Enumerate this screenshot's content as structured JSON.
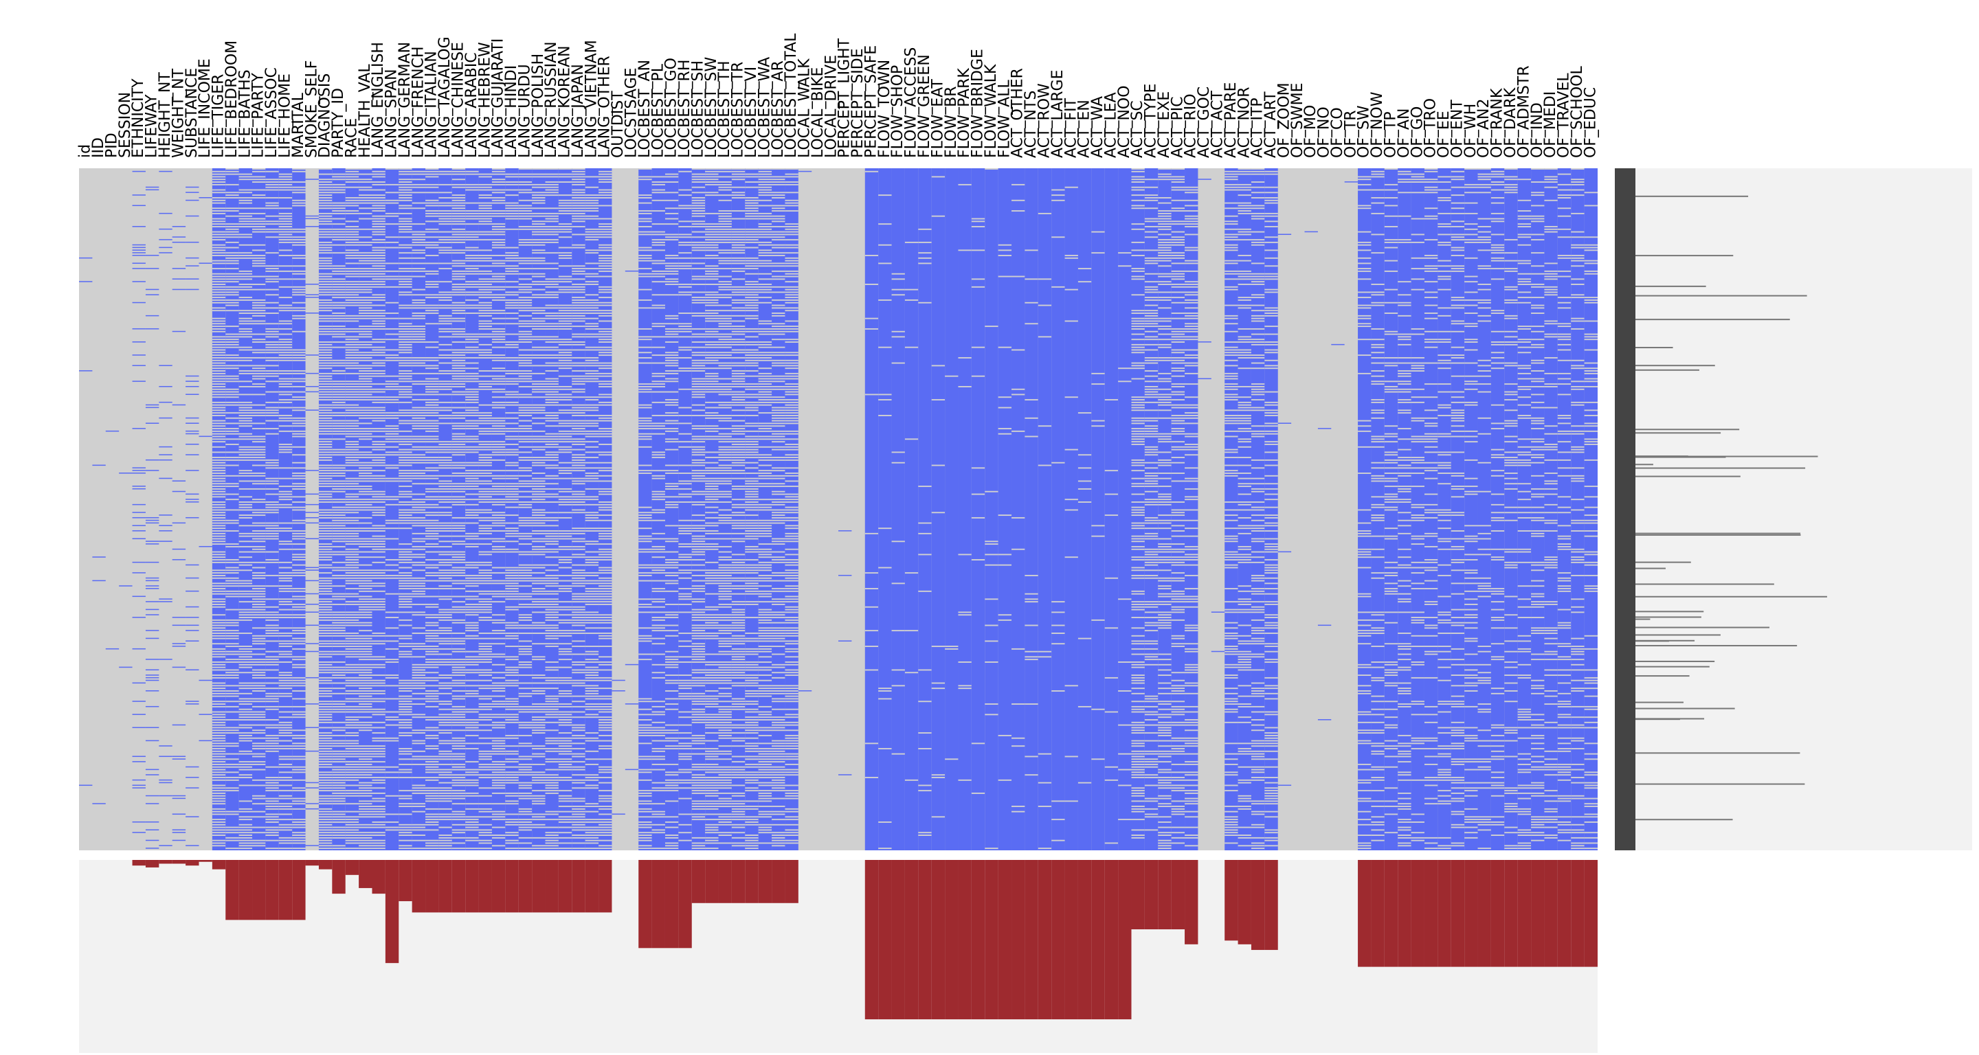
{
  "chart_data": {
    "type": "heatmap",
    "title": "",
    "description_values": "missingness matrix; blue = present, grey = missing; bottom bars = missing counts per column",
    "colors": {
      "present": "#5a6cf3",
      "missing": "#d0d0d0",
      "bar": "#9e2a2f",
      "panel_bg": "#f2f2f2",
      "side_bar": "#444444"
    },
    "columns": [
      {
        "name": "id",
        "missing": 0.0
      },
      {
        "name": "IID",
        "missing": 0.0
      },
      {
        "name": "PID",
        "missing": 0.0
      },
      {
        "name": "SESSION",
        "missing": 0.0
      },
      {
        "name": "ETHNICITY",
        "missing": 0.03
      },
      {
        "name": "LIFEWAY",
        "missing": 0.04
      },
      {
        "name": "HEIGHT_NT",
        "missing": 0.02
      },
      {
        "name": "WEIGHT_NT",
        "missing": 0.02
      },
      {
        "name": "SUBSTANCE",
        "missing": 0.03
      },
      {
        "name": "LIFE_INCOME",
        "missing": 0.01
      },
      {
        "name": "LIFE_TIGER",
        "missing": 0.05
      },
      {
        "name": "LIFE_BEDROOM",
        "missing": 0.32
      },
      {
        "name": "LIFE_BATHS",
        "missing": 0.32
      },
      {
        "name": "LIFE_PARTY",
        "missing": 0.32
      },
      {
        "name": "LIFE_ASSOC",
        "missing": 0.32
      },
      {
        "name": "LIFE_HOME",
        "missing": 0.32
      },
      {
        "name": "MARITAL",
        "missing": 0.32
      },
      {
        "name": "SMOKE_SELF",
        "missing": 0.03
      },
      {
        "name": "DIAGNOSIS",
        "missing": 0.05
      },
      {
        "name": "PARTY_ID",
        "missing": 0.18
      },
      {
        "name": "RACE",
        "missing": 0.08
      },
      {
        "name": "HEALTH_VAL",
        "missing": 0.15
      },
      {
        "name": "LANG_ENGLISH",
        "missing": 0.18
      },
      {
        "name": "LANG_SPAN",
        "missing": 0.55
      },
      {
        "name": "LANG_GERMAN",
        "missing": 0.22
      },
      {
        "name": "LANG_FRENCH",
        "missing": 0.28
      },
      {
        "name": "LANG_ITALIAN",
        "missing": 0.28
      },
      {
        "name": "LANG_TAGALOG",
        "missing": 0.28
      },
      {
        "name": "LANG_CHINESE",
        "missing": 0.28
      },
      {
        "name": "LANG_ARABIC",
        "missing": 0.28
      },
      {
        "name": "LANG_HEBREW",
        "missing": 0.28
      },
      {
        "name": "LANG_GUJARATI",
        "missing": 0.28
      },
      {
        "name": "LANG_HINDI",
        "missing": 0.28
      },
      {
        "name": "LANG_URDU",
        "missing": 0.28
      },
      {
        "name": "LANG_POLISH",
        "missing": 0.28
      },
      {
        "name": "LANG_RUSSIAN",
        "missing": 0.28
      },
      {
        "name": "LANG_KOREAN",
        "missing": 0.28
      },
      {
        "name": "LANG_JAPAN",
        "missing": 0.28
      },
      {
        "name": "LANG_VIETNAM",
        "missing": 0.28
      },
      {
        "name": "LANG_OTHER",
        "missing": 0.28
      },
      {
        "name": "OUTDIST",
        "missing": 0.0
      },
      {
        "name": "LOCSTSAGE",
        "missing": 0.0
      },
      {
        "name": "LOCBEST_AN",
        "missing": 0.47
      },
      {
        "name": "LOCBEST_PL",
        "missing": 0.47
      },
      {
        "name": "LOCBEST_GO",
        "missing": 0.47
      },
      {
        "name": "LOCBEST_RH",
        "missing": 0.47
      },
      {
        "name": "LOCBEST_SH",
        "missing": 0.23
      },
      {
        "name": "LOCBEST_SW",
        "missing": 0.23
      },
      {
        "name": "LOCBEST_TH",
        "missing": 0.23
      },
      {
        "name": "LOCBEST_TR",
        "missing": 0.23
      },
      {
        "name": "LOCBEST_VI",
        "missing": 0.23
      },
      {
        "name": "LOCBEST_WA",
        "missing": 0.23
      },
      {
        "name": "LOCBEST_AR",
        "missing": 0.23
      },
      {
        "name": "LOCBEST_TOTAL",
        "missing": 0.23
      },
      {
        "name": "LOCAL_WALK",
        "missing": 0.0
      },
      {
        "name": "LOCAL_BIKE",
        "missing": 0.0
      },
      {
        "name": "LOCAL_DRIVE",
        "missing": 0.0
      },
      {
        "name": "PERCEPT_LIGHT",
        "missing": 0.0
      },
      {
        "name": "PERCEPT_SIDE",
        "missing": 0.0
      },
      {
        "name": "PERCEPT_SAFE",
        "missing": 0.85
      },
      {
        "name": "FLOW_TOWN",
        "missing": 0.85
      },
      {
        "name": "FLOW_SHOP",
        "missing": 0.85
      },
      {
        "name": "FLOW_ACCESS",
        "missing": 0.85
      },
      {
        "name": "FLOW_GREEN",
        "missing": 0.85
      },
      {
        "name": "FLOW_EAT",
        "missing": 0.85
      },
      {
        "name": "FLOW_BR",
        "missing": 0.85
      },
      {
        "name": "FLOW_PARK",
        "missing": 0.85
      },
      {
        "name": "FLOW_BRIDGE",
        "missing": 0.85
      },
      {
        "name": "FLOW_WALK",
        "missing": 0.85
      },
      {
        "name": "FLOW_ALL",
        "missing": 0.85
      },
      {
        "name": "ACT_OTHER",
        "missing": 0.85
      },
      {
        "name": "ACT_NTS",
        "missing": 0.85
      },
      {
        "name": "ACT_ROW",
        "missing": 0.85
      },
      {
        "name": "ACT_LARGE",
        "missing": 0.85
      },
      {
        "name": "ACT_FIT",
        "missing": 0.85
      },
      {
        "name": "ACT_EN",
        "missing": 0.85
      },
      {
        "name": "ACT_WA",
        "missing": 0.85
      },
      {
        "name": "ACT_LEA",
        "missing": 0.85
      },
      {
        "name": "ACT_NOO",
        "missing": 0.85
      },
      {
        "name": "ACT_SC",
        "missing": 0.37
      },
      {
        "name": "ACT_TYPE",
        "missing": 0.37
      },
      {
        "name": "ACT_EXE",
        "missing": 0.37
      },
      {
        "name": "ACT_PIC",
        "missing": 0.37
      },
      {
        "name": "ACT_RIO",
        "missing": 0.45
      },
      {
        "name": "ACT_GOC",
        "missing": 0.0
      },
      {
        "name": "ACT_ACT",
        "missing": 0.0
      },
      {
        "name": "ACT_PARE",
        "missing": 0.43
      },
      {
        "name": "ACT_NOR",
        "missing": 0.45
      },
      {
        "name": "ACT_ITP",
        "missing": 0.48
      },
      {
        "name": "ACT_ART",
        "missing": 0.48
      },
      {
        "name": "OF_ZOOM",
        "missing": 0.0
      },
      {
        "name": "OF_SWME",
        "missing": 0.0
      },
      {
        "name": "OF_MO",
        "missing": 0.0
      },
      {
        "name": "OF_NO",
        "missing": 0.0
      },
      {
        "name": "OF_CO",
        "missing": 0.0
      },
      {
        "name": "OF_TR",
        "missing": 0.0
      },
      {
        "name": "OF_SW",
        "missing": 0.57
      },
      {
        "name": "OF_NOW",
        "missing": 0.57
      },
      {
        "name": "OF_TP",
        "missing": 0.57
      },
      {
        "name": "OF_AN",
        "missing": 0.57
      },
      {
        "name": "OF_GO",
        "missing": 0.57
      },
      {
        "name": "OF_TRO",
        "missing": 0.57
      },
      {
        "name": "OF_EE",
        "missing": 0.57
      },
      {
        "name": "OF_ENT",
        "missing": 0.57
      },
      {
        "name": "OF_WH",
        "missing": 0.57
      },
      {
        "name": "OF_AN2",
        "missing": 0.57
      },
      {
        "name": "OF_RANK",
        "missing": 0.57
      },
      {
        "name": "OF_DARK",
        "missing": 0.57
      },
      {
        "name": "OF_ADMSTR",
        "missing": 0.57
      },
      {
        "name": "OF_IND",
        "missing": 0.57
      },
      {
        "name": "OF_MEDI",
        "missing": 0.57
      },
      {
        "name": "OF_TRAVEL",
        "missing": 0.57
      },
      {
        "name": "OF_SCHOOL",
        "missing": 0.57
      },
      {
        "name": "OF_EDUC",
        "missing": 0.57
      }
    ]
  }
}
